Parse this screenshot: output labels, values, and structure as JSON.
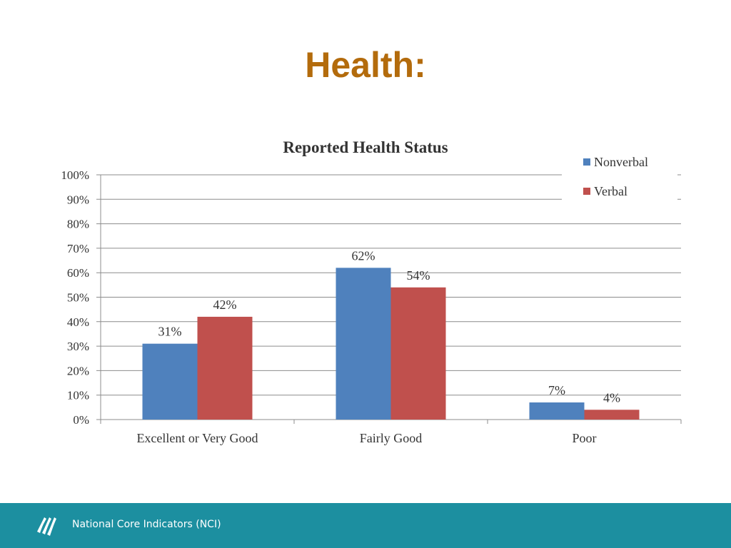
{
  "slide": {
    "title": "Health:"
  },
  "footer": {
    "org_name": "National Core Indicators (NCI)",
    "logo_icon": "nci-logo-icon"
  },
  "chart_data": {
    "type": "bar",
    "title": "Reported Health Status",
    "categories": [
      "Excellent or Very Good",
      "Fairly Good",
      "Poor"
    ],
    "series": [
      {
        "name": "Nonverbal",
        "values": [
          31,
          62,
          7
        ],
        "labels": [
          "31%",
          "62%",
          "7%"
        ],
        "color": "#4f81bd"
      },
      {
        "name": "Verbal",
        "values": [
          42,
          54,
          4
        ],
        "labels": [
          "42%",
          "54%",
          "4%"
        ],
        "color": "#c0504d"
      }
    ],
    "ylim": [
      0,
      100
    ],
    "yticks": [
      "0%",
      "10%",
      "20%",
      "30%",
      "40%",
      "50%",
      "60%",
      "70%",
      "80%",
      "90%",
      "100%"
    ],
    "grid": true,
    "legend": "top-right"
  }
}
